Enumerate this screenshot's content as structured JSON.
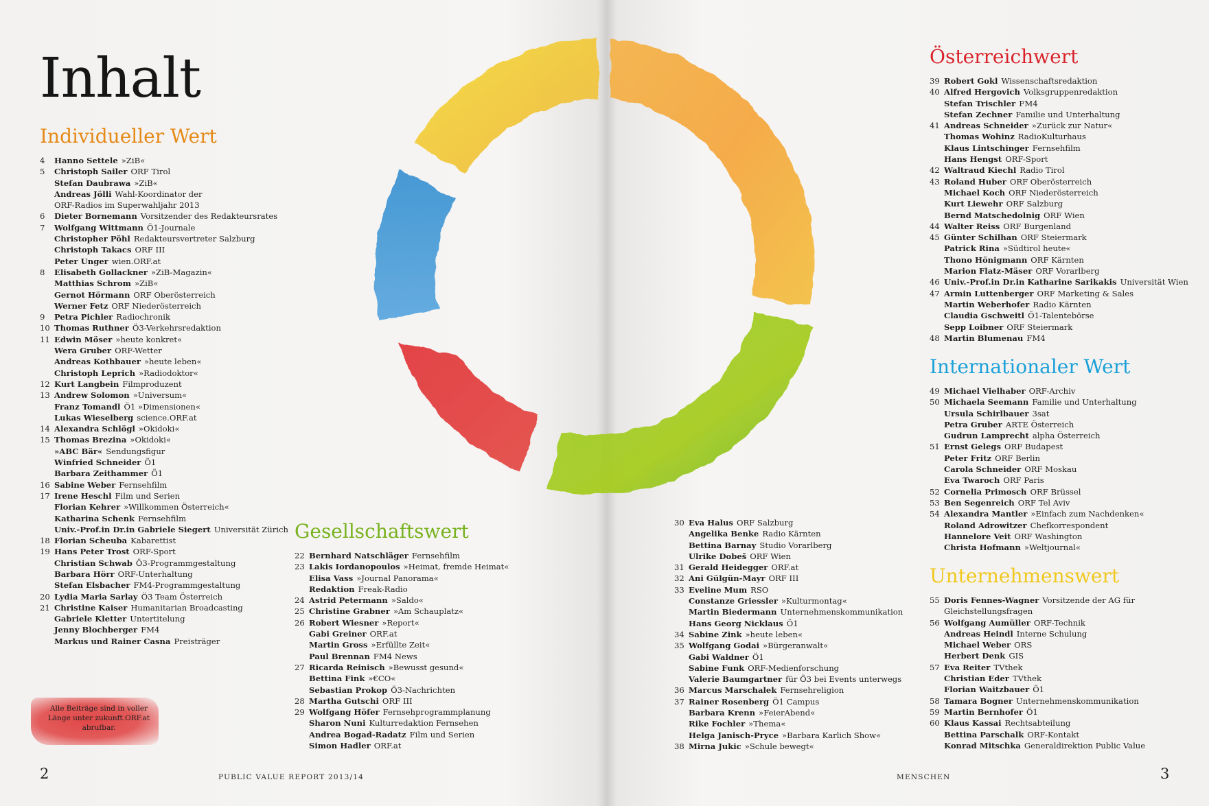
{
  "title": "Inhalt",
  "colors": {
    "individual": "#e58a18",
    "society": "#78b21f",
    "austria": "#d8232a",
    "international": "#1aa0d9",
    "company": "#f0c81e"
  },
  "sections": {
    "individuell": {
      "heading": "Individueller Wert",
      "entries": [
        {
          "page": "4",
          "name": "Hanno Settele",
          "role": "»ZiB«"
        },
        {
          "page": "5",
          "name": "Christoph Sailer",
          "role": "ORF Tirol"
        },
        {
          "page": "",
          "name": "Stefan Daubrawa",
          "role": "»ZiB«"
        },
        {
          "page": "",
          "name": "Andreas Jölli",
          "role": "Wahl-Koordinator der"
        },
        {
          "page": "",
          "name": "",
          "role": "ORF-Radios im Superwahljahr 2013"
        },
        {
          "page": "6",
          "name": "Dieter Bornemann",
          "role": "Vorsitzender des Redakteursrates"
        },
        {
          "page": "7",
          "name": "Wolfgang Wittmann",
          "role": "Ö1-Journale"
        },
        {
          "page": "",
          "name": "Christopher Pöhl",
          "role": "Redakteursvertreter Salzburg"
        },
        {
          "page": "",
          "name": "Christoph Takacs",
          "role": "ORF III"
        },
        {
          "page": "",
          "name": "Peter Unger",
          "role": "wien.ORF.at"
        },
        {
          "page": "8",
          "name": "Elisabeth Gollackner",
          "role": "»ZiB-Magazin«"
        },
        {
          "page": "",
          "name": "Matthias Schrom",
          "role": "»ZiB«"
        },
        {
          "page": "",
          "name": "Gernot Hörmann",
          "role": "ORF Oberösterreich"
        },
        {
          "page": "",
          "name": "Werner Fetz",
          "role": "ORF Niederösterreich"
        },
        {
          "page": "9",
          "name": "Petra Pichler",
          "role": "Radiochronik"
        },
        {
          "page": "10",
          "name": "Thomas Ruthner",
          "role": "Ö3-Verkehrsredaktion"
        },
        {
          "page": "11",
          "name": "Edwin Möser",
          "role": "»heute konkret«"
        },
        {
          "page": "",
          "name": "Wera Gruber",
          "role": "ORF-Wetter"
        },
        {
          "page": "",
          "name": "Andreas Kothbauer",
          "role": "»heute leben«"
        },
        {
          "page": "",
          "name": "Christoph Leprich",
          "role": "»Radiodoktor«"
        },
        {
          "page": "12",
          "name": "Kurt Langbein",
          "role": "Filmproduzent"
        },
        {
          "page": "13",
          "name": "Andrew Solomon",
          "role": "»Universum«"
        },
        {
          "page": "",
          "name": "Franz Tomandl",
          "role": "Ö1 »Dimensionen«"
        },
        {
          "page": "",
          "name": "Lukas Wieselberg",
          "role": "science.ORF.at"
        },
        {
          "page": "14",
          "name": "Alexandra Schlögl",
          "role": "»Okidoki«"
        },
        {
          "page": "15",
          "name": "Thomas Brezina",
          "role": "»Okidoki«"
        },
        {
          "page": "",
          "name": "»ABC Bär«",
          "role": "Sendungsfigur"
        },
        {
          "page": "",
          "name": "Winfried Schneider",
          "role": "Ö1"
        },
        {
          "page": "",
          "name": "Barbara Zeithammer",
          "role": "Ö1"
        },
        {
          "page": "16",
          "name": "Sabine Weber",
          "role": "Fernsehfilm"
        },
        {
          "page": "17",
          "name": "Irene Heschl",
          "role": "Film und Serien"
        },
        {
          "page": "",
          "name": "Florian Kehrer",
          "role": "»Willkommen Österreich«"
        },
        {
          "page": "",
          "name": "Katharina Schenk",
          "role": "Fernsehfilm"
        },
        {
          "page": "",
          "name": "Univ.-Prof.in Dr.in Gabriele Siegert",
          "role": "Universität Zürich"
        },
        {
          "page": "18",
          "name": "Florian Scheuba",
          "role": "Kabarettist"
        },
        {
          "page": "19",
          "name": "Hans Peter Trost",
          "role": "ORF-Sport"
        },
        {
          "page": "",
          "name": "Christian Schwab",
          "role": "Ö3-Programmgestaltung"
        },
        {
          "page": "",
          "name": "Barbara Hörr",
          "role": "ORF-Unterhaltung"
        },
        {
          "page": "",
          "name": "Stefan Elsbacher",
          "role": "FM4-Programmgestaltung"
        },
        {
          "page": "20",
          "name": "Lydia Maria Sarlay",
          "role": "Ö3 Team Österreich"
        },
        {
          "page": "21",
          "name": "Christine Kaiser",
          "role": "Humanitarian Broadcasting"
        },
        {
          "page": "",
          "name": "Gabriele Kletter",
          "role": "Untertitelung"
        },
        {
          "page": "",
          "name": "Jenny Blochberger",
          "role": "FM4"
        },
        {
          "page": "",
          "name": "Markus und Rainer Casna",
          "role": "Preisträger"
        }
      ]
    },
    "gesellschaft": {
      "heading": "Gesellschaftswert",
      "entries": [
        {
          "page": "22",
          "name": "Bernhard Natschläger",
          "role": "Fernsehfilm"
        },
        {
          "page": "23",
          "name": "Lakis Iordanopoulos",
          "role": "»Heimat, fremde Heimat«"
        },
        {
          "page": "",
          "name": "Elisa Vass",
          "role": "»Journal Panorama«"
        },
        {
          "page": "",
          "name": "Redaktion",
          "role": "Freak-Radio"
        },
        {
          "page": "24",
          "name": "Astrid Petermann",
          "role": "»Saldo«"
        },
        {
          "page": "25",
          "name": "Christine Grabner",
          "role": "»Am Schauplatz«"
        },
        {
          "page": "26",
          "name": "Robert Wiesner",
          "role": "»Report«"
        },
        {
          "page": "",
          "name": "Gabi Greiner",
          "role": "ORF.at"
        },
        {
          "page": "",
          "name": "Martin Gross",
          "role": "»Erfüllte Zeit«"
        },
        {
          "page": "",
          "name": "Paul Brennan",
          "role": "FM4 News"
        },
        {
          "page": "27",
          "name": "Ricarda Reinisch",
          "role": "»Bewusst gesund«"
        },
        {
          "page": "",
          "name": "Bettina Fink",
          "role": "»€CO«"
        },
        {
          "page": "",
          "name": "Sebastian Prokop",
          "role": "Ö3-Nachrichten"
        },
        {
          "page": "28",
          "name": "Martha Gutschi",
          "role": "ORF III"
        },
        {
          "page": "29",
          "name": "Wolfgang Höfer",
          "role": "Fernsehprogrammplanung"
        },
        {
          "page": "",
          "name": "Sharon Nuni",
          "role": "Kulturredaktion Fernsehen"
        },
        {
          "page": "",
          "name": "Andrea Bogad-Radatz",
          "role": "Film und Serien"
        },
        {
          "page": "",
          "name": "Simon Hadler",
          "role": "ORF.at"
        }
      ]
    },
    "gesellschaft_cont": {
      "entries": [
        {
          "page": "30",
          "name": "Eva Halus",
          "role": "ORF Salzburg"
        },
        {
          "page": "",
          "name": "Angelika Benke",
          "role": "Radio Kärnten"
        },
        {
          "page": "",
          "name": "Bettina Barnay",
          "role": "Studio Vorarlberg"
        },
        {
          "page": "",
          "name": "Ulrike Dobeš",
          "role": "ORF Wien"
        },
        {
          "page": "31",
          "name": "Gerald Heidegger",
          "role": "ORF.at"
        },
        {
          "page": "32",
          "name": "Ani Gülgün-Mayr",
          "role": "ORF III"
        },
        {
          "page": "33",
          "name": "Eveline Mum",
          "role": "RSO"
        },
        {
          "page": "",
          "name": "Constanze Griessler",
          "role": "»Kulturmontag«"
        },
        {
          "page": "",
          "name": "Martin Biedermann",
          "role": "Unternehmenskommunikation"
        },
        {
          "page": "",
          "name": "Hans Georg Nicklaus",
          "role": "Ö1"
        },
        {
          "page": "34",
          "name": "Sabine Zink",
          "role": "»heute leben«"
        },
        {
          "page": "35",
          "name": "Wolfgang Godai",
          "role": "»Bürgeranwalt«"
        },
        {
          "page": "",
          "name": "Gabi Waldner",
          "role": "Ö1"
        },
        {
          "page": "",
          "name": "Sabine Funk",
          "role": "ORF-Medienforschung"
        },
        {
          "page": "",
          "name": "Valerie Baumgartner",
          "role": "für Ö3 bei Events unterwegs"
        },
        {
          "page": "36",
          "name": "Marcus Marschalek",
          "role": "Fernsehreligion"
        },
        {
          "page": "37",
          "name": "Rainer Rosenberg",
          "role": "Ö1 Campus"
        },
        {
          "page": "",
          "name": "Barbara Krenn",
          "role": "»FeierAbend«"
        },
        {
          "page": "",
          "name": "Rike Fochler",
          "role": "»Thema«"
        },
        {
          "page": "",
          "name": "Helga Janisch-Pryce",
          "role": "»Barbara Karlich Show«"
        },
        {
          "page": "38",
          "name": "Mirna Jukic",
          "role": "»Schule bewegt«"
        }
      ]
    },
    "oesterreich": {
      "heading": "Österreichwert",
      "entries": [
        {
          "page": "39",
          "name": "Robert Gokl",
          "role": "Wissenschaftsredaktion"
        },
        {
          "page": "40",
          "name": "Alfred Hergovich",
          "role": "Volksgruppenredaktion"
        },
        {
          "page": "",
          "name": "Stefan Trischler",
          "role": "FM4"
        },
        {
          "page": "",
          "name": "Stefan Zechner",
          "role": "Familie und Unterhaltung"
        },
        {
          "page": "41",
          "name": "Andreas Schneider",
          "role": "»Zurück zur Natur«"
        },
        {
          "page": "",
          "name": "Thomas Wohinz",
          "role": "RadioKulturhaus"
        },
        {
          "page": "",
          "name": "Klaus Lintschinger",
          "role": "Fernsehfilm"
        },
        {
          "page": "",
          "name": "Hans Hengst",
          "role": "ORF-Sport"
        },
        {
          "page": "42",
          "name": "Waltraud Kiechl",
          "role": "Radio Tirol"
        },
        {
          "page": "43",
          "name": "Roland Huber",
          "role": "ORF Oberösterreich"
        },
        {
          "page": "",
          "name": "Michael Koch",
          "role": "ORF Niederösterreich"
        },
        {
          "page": "",
          "name": "Kurt Liewehr",
          "role": "ORF Salzburg"
        },
        {
          "page": "",
          "name": "Bernd Matschedolnig",
          "role": "ORF Wien"
        },
        {
          "page": "44",
          "name": "Walter Reiss",
          "role": "ORF Burgenland"
        },
        {
          "page": "45",
          "name": "Günter Schilhan",
          "role": "ORF Steiermark"
        },
        {
          "page": "",
          "name": "Patrick Rina",
          "role": "»Südtirol heute«"
        },
        {
          "page": "",
          "name": "Thono Hönigmann",
          "role": "ORF Kärnten"
        },
        {
          "page": "",
          "name": "Marion Flatz-Mäser",
          "role": "ORF Vorarlberg"
        },
        {
          "page": "46",
          "name": "Univ.-Prof.in Dr.in Katharine Sarikakis",
          "role": "Universität Wien"
        },
        {
          "page": "47",
          "name": "Armin Luttenberger",
          "role": "ORF Marketing & Sales"
        },
        {
          "page": "",
          "name": "Martin Weberhofer",
          "role": "Radio Kärnten"
        },
        {
          "page": "",
          "name": "Claudia Gschweitl",
          "role": "Ö1-Talentebörse"
        },
        {
          "page": "",
          "name": "Sepp Loibner",
          "role": "ORF Steiermark"
        },
        {
          "page": "48",
          "name": "Martin Blumenau",
          "role": "FM4"
        }
      ]
    },
    "international": {
      "heading": "Internationaler Wert",
      "entries": [
        {
          "page": "49",
          "name": "Michael Vielhaber",
          "role": "ORF-Archiv"
        },
        {
          "page": "50",
          "name": "Michaela Seemann",
          "role": "Familie und Unterhaltung"
        },
        {
          "page": "",
          "name": "Ursula Schirlbauer",
          "role": "3sat"
        },
        {
          "page": "",
          "name": "Petra Gruber",
          "role": "ARTE Österreich"
        },
        {
          "page": "",
          "name": "Gudrun Lamprecht",
          "role": "alpha Österreich"
        },
        {
          "page": "51",
          "name": "Ernst Gelegs",
          "role": "ORF Budapest"
        },
        {
          "page": "",
          "name": "Peter Fritz",
          "role": "ORF Berlin"
        },
        {
          "page": "",
          "name": "Carola Schneider",
          "role": "ORF Moskau"
        },
        {
          "page": "",
          "name": "Eva Twaroch",
          "role": "ORF Paris"
        },
        {
          "page": "52",
          "name": "Cornelia Primosch",
          "role": "ORF Brüssel"
        },
        {
          "page": "53",
          "name": "Ben Segenreich",
          "role": "ORF Tel Aviv"
        },
        {
          "page": "54",
          "name": "Alexandra Mantler",
          "role": "»Einfach zum Nachdenken«"
        },
        {
          "page": "",
          "name": "Roland Adrowitzer",
          "role": "Chefkorrespondent"
        },
        {
          "page": "",
          "name": "Hannelore Veit",
          "role": "ORF Washington"
        },
        {
          "page": "",
          "name": "Christa Hofmann",
          "role": "»Weltjournal«"
        }
      ]
    },
    "unternehmen": {
      "heading": "Unternehmenswert",
      "entries": [
        {
          "page": "55",
          "name": "Doris Fennes-Wagner",
          "role": "Vorsitzende der AG für"
        },
        {
          "page": "",
          "name": "",
          "role": "Gleichstellungsfragen"
        },
        {
          "page": "56",
          "name": "Wolfgang Aumüller",
          "role": "ORF-Technik"
        },
        {
          "page": "",
          "name": "Andreas Heindl",
          "role": "Interne Schulung"
        },
        {
          "page": "",
          "name": "Michael Weber",
          "role": "ORS"
        },
        {
          "page": "",
          "name": "Herbert Denk",
          "role": "GIS"
        },
        {
          "page": "57",
          "name": "Eva Reiter",
          "role": "TVthek"
        },
        {
          "page": "",
          "name": "Christian Eder",
          "role": "TVthek"
        },
        {
          "page": "",
          "name": "Florian Waitzbauer",
          "role": "Ö1"
        },
        {
          "page": "58",
          "name": "Tamara Bogner",
          "role": "Unternehmenskommunikation"
        },
        {
          "page": "59",
          "name": "Martin Bernhofer",
          "role": "Ö1"
        },
        {
          "page": "60",
          "name": "Klaus Kassai",
          "role": "Rechtsabteilung"
        },
        {
          "page": "",
          "name": "Bettina Parschalk",
          "role": "ORF-Kontakt"
        },
        {
          "page": "",
          "name": "Konrad Mitschka",
          "role": "Generaldirektion Public Value"
        }
      ]
    }
  },
  "note": "Alle Beiträge sind in voller Länge unter zukunft.ORF.at abrufbar.",
  "footer": {
    "left_page": "2",
    "left_label": "PUBLIC VALUE REPORT 2013/14",
    "right_label": "MENSCHEN",
    "right_page": "3"
  }
}
